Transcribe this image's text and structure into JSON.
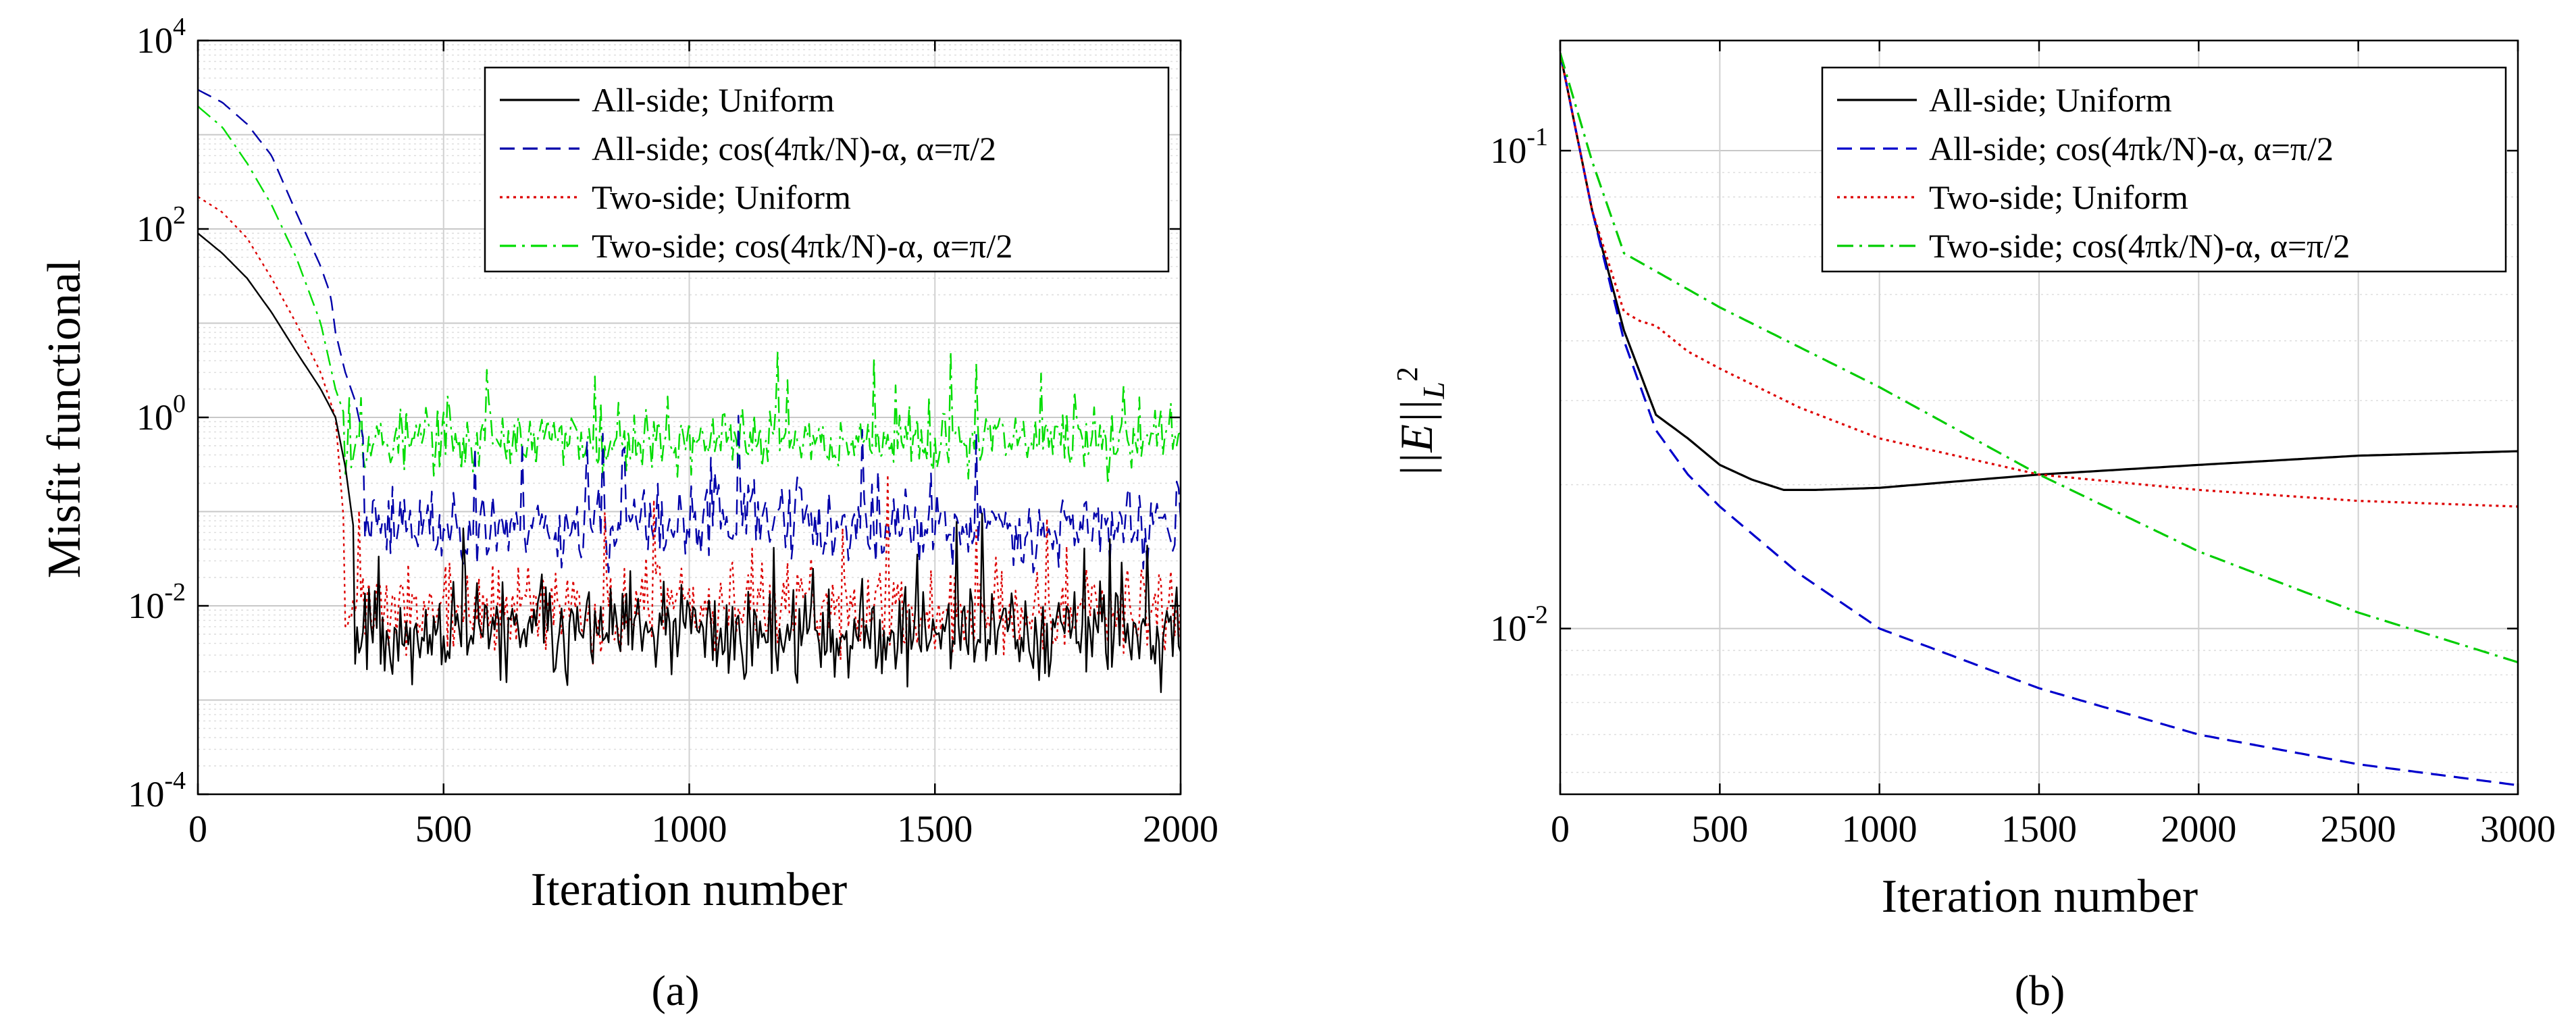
{
  "chart_data": [
    {
      "type": "line",
      "panel_label": "(a)",
      "title": "",
      "xlabel": "Iteration number",
      "ylabel": "Misfit functional",
      "xscale": "linear",
      "yscale": "log",
      "xlim": [
        0,
        2000
      ],
      "ylim": [
        0.0001,
        10000
      ],
      "grid": true,
      "legend_position": "top-right",
      "x_ticks": [
        0,
        500,
        1000,
        1500,
        2000
      ],
      "x_tick_labels": [
        "0",
        "500",
        "1000",
        "1500",
        "2000"
      ],
      "y_ticks": [
        0.0001,
        0.01,
        1,
        100,
        10000
      ],
      "y_tick_labels": [
        {
          "base": "10",
          "exp": "-4"
        },
        {
          "base": "10",
          "exp": "-2"
        },
        {
          "base": "10",
          "exp": "0"
        },
        {
          "base": "10",
          "exp": "2"
        },
        {
          "base": "10",
          "exp": "4"
        }
      ],
      "series": [
        {
          "name": "All-side; Uniform",
          "color": "#000000",
          "dash": "solid",
          "x": [
            0,
            50,
            100,
            150,
            200,
            250,
            280,
            300,
            320,
            350,
            400,
            500,
            700,
            1000,
            1500,
            2000
          ],
          "y": [
            90,
            55,
            30,
            13,
            5,
            2,
            1,
            0.3,
            0.05,
            0.02,
            0.008,
            0.006,
            0.006,
            0.005,
            0.005,
            0.005
          ],
          "noise": {
            "start_x": 320,
            "center_log10": -2.3,
            "spread_log10": 0.75,
            "seed": 11
          }
        },
        {
          "name": "All-side; cos(4πk/N)-α, α=π/2",
          "color": "#0000aa",
          "dash": "dashed",
          "x": [
            0,
            50,
            100,
            150,
            200,
            250,
            270,
            280,
            300,
            320,
            340,
            400,
            500,
            1000,
            1500,
            2000
          ],
          "y": [
            3000,
            2200,
            1300,
            600,
            150,
            40,
            20,
            8,
            3,
            1.5,
            0.5,
            0.2,
            0.1,
            0.08,
            0.08,
            0.08
          ],
          "noise": {
            "start_x": 340,
            "center_log10": -1.15,
            "spread_log10": 0.6,
            "seed": 23
          }
        },
        {
          "name": "Two-side; Uniform",
          "color": "#dd0000",
          "dash": "dotted",
          "x": [
            0,
            50,
            100,
            150,
            200,
            250,
            280,
            300,
            320,
            400,
            500,
            1000,
            1500,
            2000
          ],
          "y": [
            220,
            150,
            80,
            30,
            10,
            3,
            1,
            0.05,
            0.01,
            0.008,
            0.007,
            0.006,
            0.006,
            0.006
          ],
          "noise": {
            "start_x": 300,
            "center_log10": -2.05,
            "spread_log10": 0.7,
            "seed": 37
          }
        },
        {
          "name": "Two-side; cos(4πk/N)-α, α=π/2",
          "color": "#00dd00",
          "dash": "dashdot",
          "x": [
            0,
            50,
            100,
            150,
            200,
            250,
            280,
            300,
            320,
            400,
            500,
            1000,
            1500,
            2000
          ],
          "y": [
            2000,
            1200,
            500,
            180,
            50,
            10,
            2,
            1,
            0.7,
            0.5,
            0.5,
            0.5,
            0.6,
            0.6
          ],
          "noise": {
            "start_x": 300,
            "center_log10": -0.25,
            "spread_log10": 0.5,
            "seed": 53
          }
        }
      ]
    },
    {
      "type": "line",
      "panel_label": "(b)",
      "title": "",
      "xlabel": "Iteration number",
      "ylabel": "||E||L2",
      "xscale": "linear",
      "yscale": "log",
      "xlim": [
        0,
        3000
      ],
      "ylim": [
        0.0045,
        0.17
      ],
      "grid": true,
      "legend_position": "top-right",
      "x_ticks": [
        0,
        500,
        1000,
        1500,
        2000,
        2500,
        3000
      ],
      "x_tick_labels": [
        "0",
        "500",
        "1000",
        "1500",
        "2000",
        "2500",
        "3000"
      ],
      "y_ticks": [
        0.01,
        0.1
      ],
      "y_tick_labels": [
        {
          "base": "10",
          "exp": "-2"
        },
        {
          "base": "10",
          "exp": "-1"
        }
      ],
      "series": [
        {
          "name": "All-side; Uniform",
          "color": "#000000",
          "dash": "solid",
          "x": [
            0,
            100,
            200,
            300,
            400,
            500,
            600,
            700,
            800,
            1000,
            1500,
            2000,
            2500,
            3000
          ],
          "y": [
            0.16,
            0.075,
            0.042,
            0.028,
            0.025,
            0.022,
            0.0205,
            0.0195,
            0.0195,
            0.0197,
            0.021,
            0.022,
            0.023,
            0.0235
          ]
        },
        {
          "name": "All-side; cos(4πk/N)-α, α=π/2",
          "color": "#0000cc",
          "dash": "dashed",
          "x": [
            0,
            100,
            200,
            300,
            400,
            500,
            750,
            1000,
            1500,
            2000,
            2500,
            3000
          ],
          "y": [
            0.16,
            0.075,
            0.04,
            0.026,
            0.021,
            0.018,
            0.013,
            0.01,
            0.0075,
            0.006,
            0.0052,
            0.0047
          ]
        },
        {
          "name": "Two-side; Uniform",
          "color": "#dd0000",
          "dash": "dotted",
          "x": [
            0,
            100,
            200,
            250,
            300,
            400,
            500,
            750,
            1000,
            1500,
            2000,
            2500,
            3000
          ],
          "y": [
            0.16,
            0.075,
            0.046,
            0.044,
            0.043,
            0.038,
            0.035,
            0.029,
            0.025,
            0.021,
            0.0195,
            0.0185,
            0.018
          ]
        },
        {
          "name": "Two-side; cos(4πk/N)-α, α=π/2",
          "color": "#00cc00",
          "dash": "dashdot",
          "x": [
            0,
            100,
            200,
            500,
            1000,
            1500,
            2000,
            2500,
            3000
          ],
          "y": [
            0.16,
            0.095,
            0.061,
            0.047,
            0.032,
            0.021,
            0.0145,
            0.0108,
            0.0085
          ]
        }
      ]
    }
  ]
}
